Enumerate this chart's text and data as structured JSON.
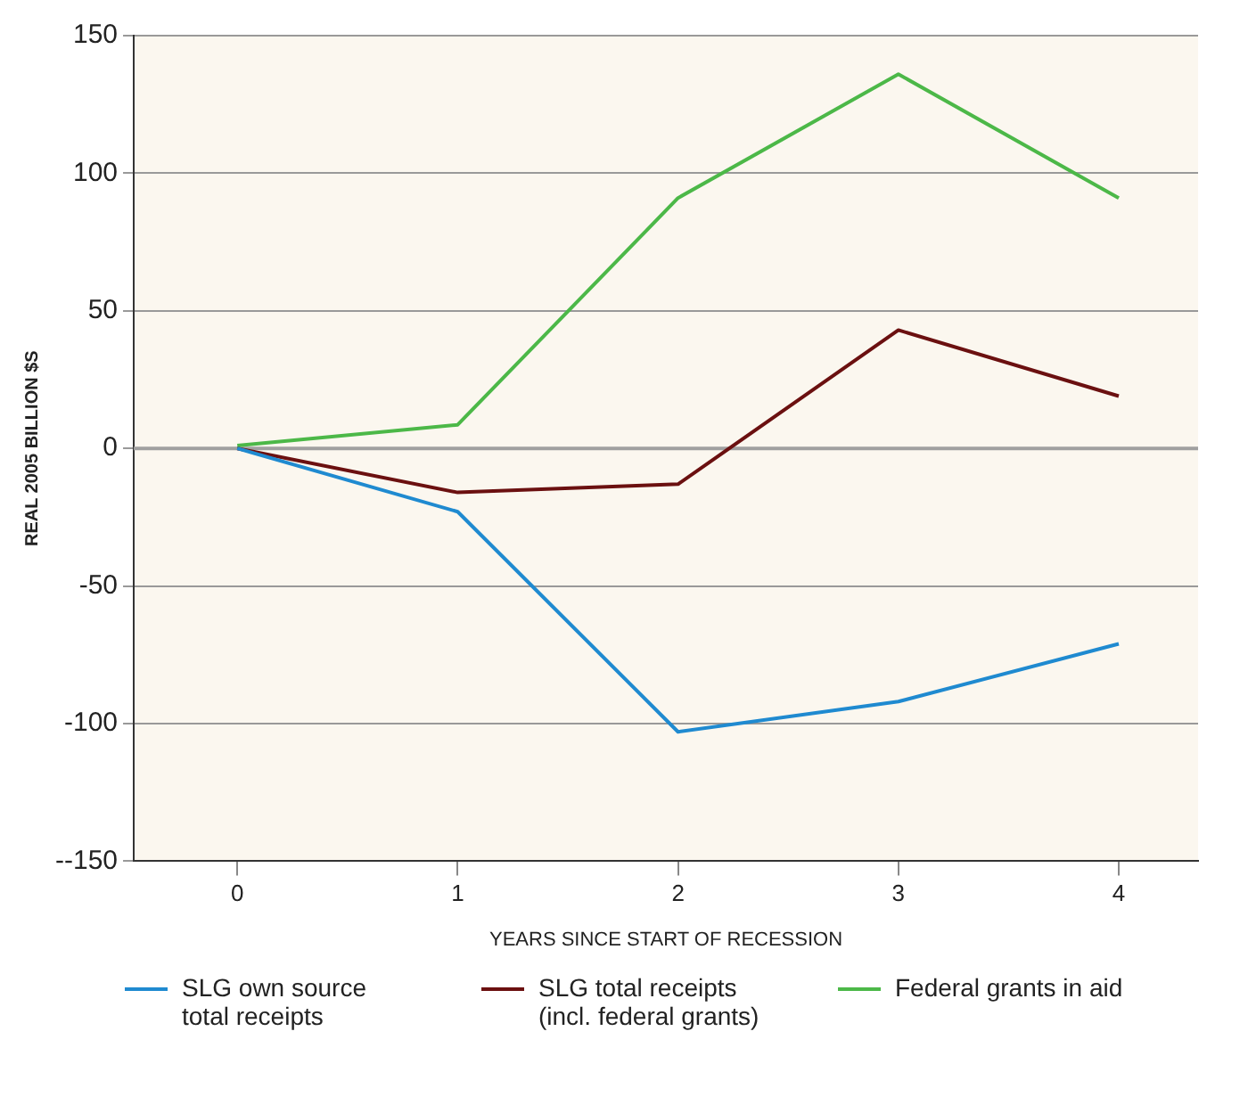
{
  "chart_data": {
    "type": "line",
    "xlabel": "YEARS SINCE START OF RECESSION",
    "ylabel": "REAL 2005 BILLION $S",
    "x": [
      0,
      1,
      2,
      3,
      4
    ],
    "xlim": [
      -0.47,
      4.36
    ],
    "xticks": [
      0,
      1,
      2,
      3,
      4
    ],
    "ylim": [
      -150,
      150
    ],
    "yticks": [
      {
        "value": -150,
        "label": "--150"
      },
      -100,
      -50,
      0,
      50,
      100,
      150
    ],
    "grid": "y",
    "legend": "bottom",
    "marker": "none",
    "line_style": "solid",
    "ref_lines": [
      {
        "axis": "y",
        "value": 0,
        "color": "#a0a0a0"
      }
    ],
    "series": [
      {
        "name": "SLG own source total receipts",
        "color": "#1f8ad0",
        "values": [
          0,
          -23,
          -103,
          -92,
          -71
        ]
      },
      {
        "name": "SLG total receipts (incl. federal grants)",
        "color": "#6b1010",
        "values": [
          0,
          -16,
          -13,
          43,
          19
        ]
      },
      {
        "name": "Federal grants in aid",
        "color": "#4cb848",
        "values": [
          1,
          8.6,
          91,
          136,
          91
        ]
      }
    ]
  }
}
